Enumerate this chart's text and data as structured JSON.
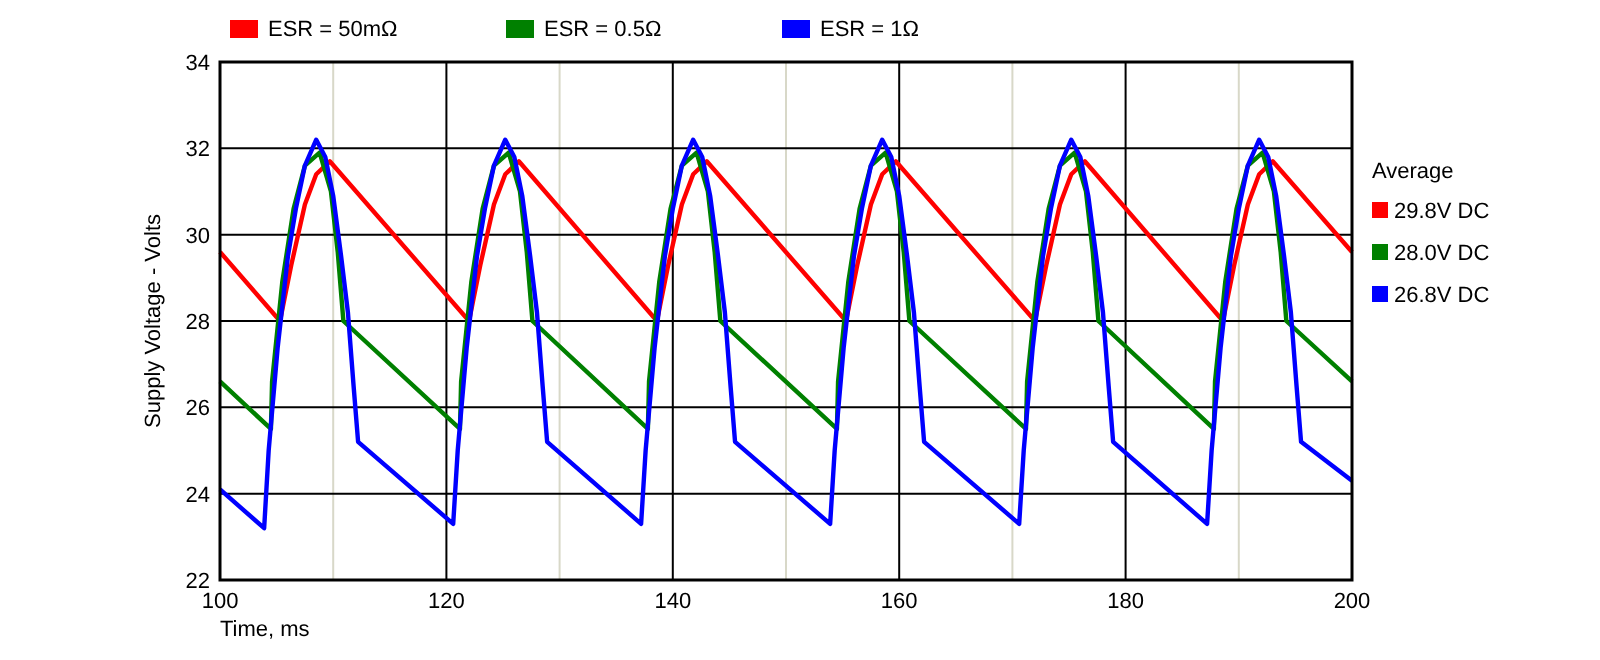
{
  "chart_data": {
    "type": "line",
    "xlabel": "Time, ms",
    "ylabel": "Supply Voltage - Volts",
    "xlim": [
      100,
      200
    ],
    "ylim": [
      22,
      34
    ],
    "xticks": [
      100,
      {
        "value": 110,
        "label": null
      },
      120,
      {
        "value": 130,
        "label": null
      },
      140,
      {
        "value": 150,
        "label": null
      },
      160,
      {
        "value": 170,
        "label": null
      },
      180,
      {
        "value": 190,
        "label": null
      },
      200
    ],
    "yticks": [
      22,
      24,
      26,
      28,
      30,
      32,
      34
    ],
    "grid": true,
    "legend": "top left",
    "marker": "none",
    "line_style": "solid",
    "annotations": [
      "Average",
      "29.8V DC",
      "28.0V DC",
      "26.8V DC"
    ],
    "series": [
      {
        "name": "ESR = 50mΩ",
        "color": "#ff0000",
        "x": [
          100,
          105.3,
          106.3,
          107.5,
          108.5,
          109.7,
          122.0,
          123.0,
          124.2,
          125.2,
          126.4,
          138.6,
          139.6,
          140.8,
          141.8,
          143.0,
          155.3,
          156.3,
          157.5,
          158.5,
          159.7,
          172.0,
          173.0,
          174.2,
          175.2,
          176.4,
          188.6,
          189.6,
          190.8,
          191.8,
          193.0,
          200
        ],
        "values": [
          29.6,
          28.0,
          29.3,
          30.7,
          31.4,
          31.7,
          28.0,
          29.3,
          30.7,
          31.4,
          31.7,
          28.0,
          29.3,
          30.7,
          31.4,
          31.7,
          28.0,
          29.3,
          30.7,
          31.4,
          31.7,
          28.0,
          29.3,
          30.7,
          31.4,
          31.7,
          28.0,
          29.3,
          30.7,
          31.4,
          31.7,
          29.6
        ]
      },
      {
        "name": "ESR = 0.5Ω",
        "color": "#008000",
        "x": [
          100,
          104.5,
          104.6,
          105.5,
          106.5,
          107.5,
          108.8,
          109.8,
          110.4,
          110.9,
          121.2,
          121.3,
          122.2,
          123.2,
          124.2,
          125.5,
          126.5,
          127.1,
          127.6,
          137.8,
          137.9,
          138.8,
          139.8,
          140.8,
          142.1,
          143.1,
          143.7,
          144.2,
          154.5,
          154.6,
          155.5,
          156.5,
          157.5,
          158.8,
          159.8,
          160.4,
          160.9,
          171.2,
          171.3,
          172.2,
          173.2,
          174.2,
          175.5,
          176.5,
          177.1,
          177.6,
          187.8,
          187.9,
          188.8,
          189.8,
          190.8,
          192.1,
          193.1,
          193.7,
          194.2,
          200
        ],
        "values": [
          26.6,
          25.5,
          26.6,
          28.9,
          30.6,
          31.6,
          31.9,
          31.0,
          29.6,
          28.0,
          25.5,
          26.6,
          28.9,
          30.6,
          31.6,
          31.9,
          31.0,
          29.6,
          28.0,
          25.5,
          26.6,
          28.9,
          30.6,
          31.6,
          31.9,
          31.0,
          29.6,
          28.0,
          25.5,
          26.6,
          28.9,
          30.6,
          31.6,
          31.9,
          31.0,
          29.6,
          28.0,
          25.5,
          26.6,
          28.9,
          30.6,
          31.6,
          31.9,
          31.0,
          29.6,
          28.0,
          25.5,
          26.6,
          28.9,
          30.6,
          31.6,
          31.9,
          31.0,
          29.6,
          28.0,
          26.6
        ]
      },
      {
        "name": "ESR = 1Ω",
        "color": "#0000ff",
        "x": [
          100,
          103.9,
          104.3,
          105.1,
          106.0,
          106.7,
          107.5,
          108.5,
          109.3,
          110.0,
          110.7,
          111.3,
          111.8,
          112.2,
          120.6,
          121.0,
          121.8,
          122.7,
          123.4,
          124.2,
          125.2,
          126.0,
          126.7,
          127.4,
          128.0,
          128.5,
          128.9,
          137.2,
          137.6,
          138.4,
          139.3,
          140.0,
          140.8,
          141.8,
          142.6,
          143.3,
          144.0,
          144.6,
          145.1,
          145.5,
          153.9,
          154.3,
          155.1,
          156.0,
          156.7,
          157.5,
          158.5,
          159.3,
          160.0,
          160.7,
          161.3,
          161.8,
          162.2,
          170.6,
          171.0,
          171.8,
          172.7,
          173.4,
          174.2,
          175.2,
          176.0,
          176.7,
          177.4,
          178.0,
          178.5,
          178.9,
          187.2,
          187.6,
          188.4,
          189.3,
          190.0,
          190.8,
          191.8,
          192.6,
          193.3,
          194.0,
          194.6,
          195.1,
          195.5,
          200
        ],
        "values": [
          24.1,
          23.2,
          25.0,
          27.4,
          29.5,
          30.6,
          31.6,
          32.2,
          31.8,
          30.9,
          29.5,
          28.2,
          26.5,
          25.2,
          23.3,
          25.0,
          27.4,
          29.5,
          30.6,
          31.6,
          32.2,
          31.8,
          30.9,
          29.5,
          28.2,
          26.5,
          25.2,
          23.3,
          25.0,
          27.4,
          29.5,
          30.6,
          31.6,
          32.2,
          31.8,
          30.9,
          29.5,
          28.2,
          26.5,
          25.2,
          23.3,
          25.0,
          27.4,
          29.5,
          30.6,
          31.6,
          32.2,
          31.8,
          30.9,
          29.5,
          28.2,
          26.5,
          25.2,
          23.3,
          25.0,
          27.4,
          29.5,
          30.6,
          31.6,
          32.2,
          31.8,
          30.9,
          29.5,
          28.2,
          26.5,
          25.2,
          23.3,
          25.0,
          27.4,
          29.5,
          30.6,
          31.6,
          32.2,
          31.8,
          30.9,
          29.5,
          28.2,
          26.5,
          25.2,
          24.3
        ]
      }
    ]
  }
}
